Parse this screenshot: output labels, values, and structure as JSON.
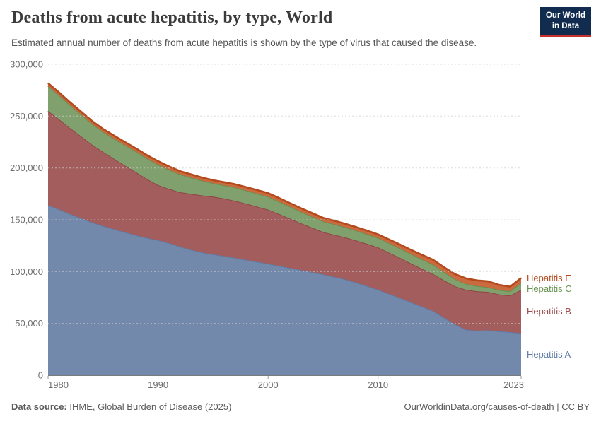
{
  "header": {
    "title": "Deaths from acute hepatitis, by type, World",
    "subtitle": "Estimated annual number of deaths from acute hepatitis is shown by the type of virus that caused the disease."
  },
  "logo": {
    "line1": "Our World",
    "line2": "in Data",
    "bg_color": "#112c4e",
    "accent_color": "#c5312b"
  },
  "footer": {
    "datasource_label": "Data source:",
    "datasource_value": "IHME, Global Burden of Disease (2025)",
    "credit": "OurWorldinData.org/causes-of-death | CC BY"
  },
  "chart_data": {
    "type": "area",
    "stacked": true,
    "title": "Deaths from acute hepatitis, by type, World",
    "xlabel": "",
    "ylabel": "",
    "ylim": [
      0,
      300000
    ],
    "yticks": [
      0,
      50000,
      100000,
      150000,
      200000,
      250000,
      300000
    ],
    "xticks": [
      1980,
      1990,
      2000,
      2010,
      2023
    ],
    "grid": "horizontal-dashed",
    "legend_position": "right-edge-labels",
    "x": [
      1980,
      1981,
      1982,
      1983,
      1984,
      1985,
      1986,
      1987,
      1988,
      1989,
      1990,
      1991,
      1992,
      1993,
      1994,
      1995,
      1996,
      1997,
      1998,
      1999,
      2000,
      2001,
      2002,
      2003,
      2004,
      2005,
      2006,
      2007,
      2008,
      2009,
      2010,
      2011,
      2012,
      2013,
      2014,
      2015,
      2016,
      2017,
      2018,
      2019,
      2020,
      2021,
      2022,
      2023
    ],
    "series": [
      {
        "name": "Hepatitis A",
        "fill": "#7289ac",
        "stroke": "#5c7ca9",
        "label_color": "#5f7da9",
        "values": [
          164000,
          160000,
          155500,
          151500,
          147500,
          144000,
          141000,
          138000,
          135000,
          132500,
          130300,
          127500,
          124000,
          121000,
          118500,
          116600,
          115000,
          113200,
          111300,
          109400,
          107500,
          105500,
          103500,
          101400,
          99400,
          97300,
          95000,
          92500,
          89400,
          86000,
          82500,
          78500,
          74500,
          70300,
          66200,
          62100,
          55500,
          49000,
          43900,
          43000,
          43400,
          42500,
          41600,
          40400
        ]
      },
      {
        "name": "Hepatitis B",
        "fill": "#a35d5d",
        "stroke": "#8f4242",
        "label_color": "#9d4e4e",
        "values": [
          91000,
          87000,
          83000,
          79000,
          75000,
          71500,
          67800,
          64200,
          60800,
          56800,
          53200,
          52200,
          52600,
          54000,
          55000,
          55700,
          55500,
          55100,
          54300,
          53300,
          52300,
          50000,
          47600,
          45200,
          43000,
          40900,
          40600,
          40500,
          40600,
          40800,
          40900,
          39800,
          38700,
          37500,
          36500,
          35600,
          36000,
          36800,
          38600,
          38000,
          37000,
          35500,
          35300,
          42000
        ]
      },
      {
        "name": "Hepatitis C",
        "fill": "#80a06e",
        "stroke": "#65904e",
        "label_color": "#6a9552",
        "values": [
          24000,
          23000,
          22000,
          21000,
          20000,
          19300,
          19500,
          19700,
          19900,
          19800,
          19700,
          18500,
          17200,
          15800,
          14300,
          13000,
          12800,
          12900,
          12700,
          12600,
          12500,
          12000,
          11500,
          11100,
          10700,
          10300,
          10100,
          9800,
          9600,
          9300,
          9100,
          9100,
          9100,
          9100,
          9100,
          9100,
          8000,
          6800,
          5700,
          5100,
          4500,
          4200,
          4000,
          6800
        ]
      },
      {
        "name": "Hepatitis E",
        "fill": "#cb6a3e",
        "stroke": "#b3491c",
        "label_color": "#b64a1c",
        "values": [
          2800,
          2800,
          2800,
          2800,
          2800,
          2800,
          2900,
          3000,
          3100,
          3200,
          3300,
          3200,
          3100,
          3000,
          2900,
          2900,
          3000,
          3100,
          3200,
          3400,
          3500,
          3500,
          3400,
          3400,
          3400,
          3400,
          3400,
          3400,
          3400,
          3400,
          3400,
          3600,
          3800,
          4000,
          4300,
          4600,
          4700,
          4900,
          5200,
          5400,
          5700,
          5000,
          4500,
          4600
        ]
      }
    ]
  }
}
